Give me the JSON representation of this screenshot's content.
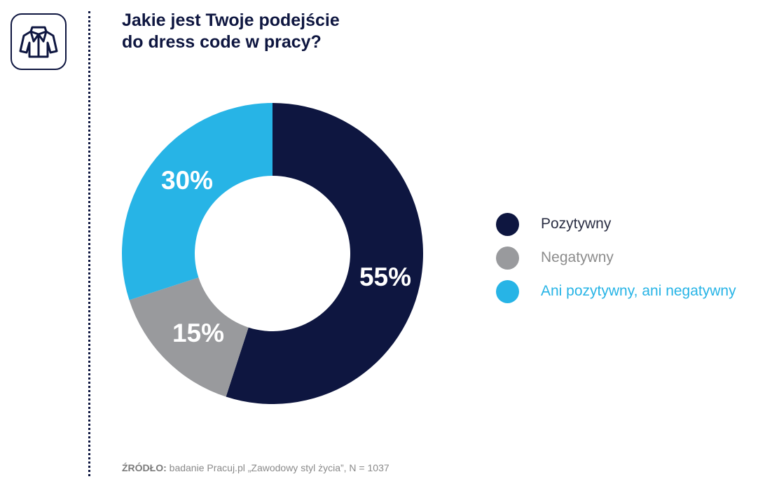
{
  "header": {
    "icon": "jacket-icon",
    "title_line1": "Jakie jest Twoje podejście",
    "title_line2": "do dress code w pracy?"
  },
  "chart_data": {
    "type": "pie",
    "donut": true,
    "title": "Jakie jest Twoje podejście do dress code w pracy?",
    "slices": [
      {
        "label": "Pozytywny",
        "value": 55,
        "value_label": "55%",
        "color": "#0e1640"
      },
      {
        "label": "Negatywny",
        "value": 15,
        "value_label": "15%",
        "color": "#999a9d"
      },
      {
        "label": "Ani pozytywny, ani negatywny",
        "value": 30,
        "value_label": "30%",
        "color": "#27b4e6"
      }
    ],
    "legend_position": "right"
  },
  "legend": {
    "items": [
      {
        "label": "Pozytywny",
        "color": "#0e1640",
        "text_color": "#2b2f44"
      },
      {
        "label": "Negatywny",
        "color": "#999a9d",
        "text_color": "#8c8c8c"
      },
      {
        "label": "Ani pozytywny, ani negatywny",
        "color": "#27b4e6",
        "text_color": "#27b4e6"
      }
    ]
  },
  "footer": {
    "source_label": "ŹRÓDŁO:",
    "source_text": " badanie Pracuj.pl „Zawodowy styl życia”, N = 1037"
  }
}
